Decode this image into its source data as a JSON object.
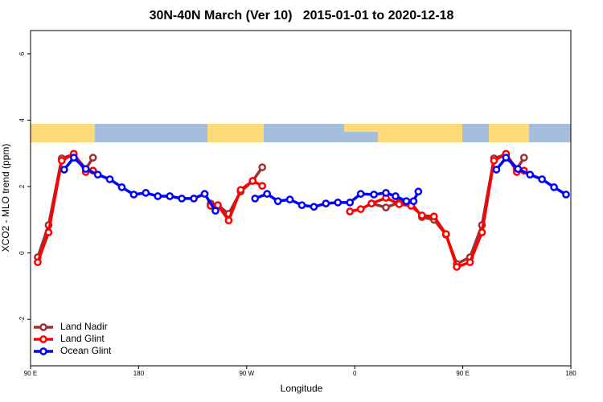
{
  "chart_data": {
    "type": "line",
    "title": "30N-40N March (Ver 10)   2015-01-01 to 2020-12-18",
    "xlabel": "Longitude",
    "ylabel": "XCO2 - MLO trend (ppm)",
    "xlim": [
      90,
      540
    ],
    "ylim": [
      -3.4,
      6.7
    ],
    "xticks": [
      {
        "value": 90,
        "label": "90 E"
      },
      180,
      {
        "value": 270,
        "label": "90 W"
      },
      {
        "value": 360,
        "label": "0"
      },
      {
        "value": 450,
        "label": "90 E"
      },
      {
        "value": 540,
        "label": "180"
      }
    ],
    "yticks": [
      -2,
      0,
      2,
      4,
      6
    ],
    "legend": "bottom-left",
    "series": [
      {
        "name": "Land Nadir",
        "color": "#a03030",
        "x": [
          96,
          105,
          116,
          126,
          136,
          142,
          null,
          240,
          246,
          255,
          265,
          275,
          283,
          null,
          374,
          386,
          397,
          407,
          416,
          426,
          436,
          445,
          456,
          466,
          476,
          486,
          495,
          501
        ],
        "values": [
          -0.13,
          0.84,
          2.85,
          2.97,
          2.53,
          2.87,
          null,
          1.49,
          1.44,
          1.18,
          1.85,
          2.17,
          2.58,
          null,
          1.49,
          1.37,
          1.52,
          1.52,
          1.08,
          1.0,
          0.55,
          -0.33,
          -0.13,
          0.84,
          2.85,
          2.97,
          2.53,
          2.87
        ]
      },
      {
        "name": "Land Glint",
        "color": "#ff0000",
        "x": [
          96,
          105,
          116,
          126,
          136,
          142,
          null,
          240,
          246,
          255,
          265,
          275,
          283,
          null,
          356,
          365,
          374,
          386,
          397,
          407,
          416,
          426,
          436,
          445,
          456,
          466,
          476,
          486,
          495,
          501
        ],
        "values": [
          -0.28,
          0.62,
          2.78,
          2.99,
          2.44,
          2.48,
          null,
          1.42,
          1.44,
          0.98,
          1.9,
          2.17,
          2.02,
          null,
          1.25,
          1.32,
          1.49,
          1.66,
          1.47,
          1.42,
          1.13,
          1.1,
          0.57,
          -0.42,
          -0.28,
          0.62,
          2.78,
          2.99,
          2.44,
          2.48
        ]
      },
      {
        "name": "Ocean Glint",
        "color": "#0000ff",
        "x": [
          118,
          126,
          136,
          146,
          156,
          166,
          176,
          186,
          196,
          206,
          216,
          226,
          235,
          244,
          null,
          277,
          287,
          296,
          306,
          316,
          326,
          336,
          346,
          356,
          365,
          376,
          386,
          394,
          403,
          409,
          413,
          null,
          478,
          486,
          496,
          506,
          516,
          526,
          536
        ],
        "values": [
          2.51,
          2.87,
          2.53,
          2.36,
          2.22,
          1.98,
          1.76,
          1.81,
          1.71,
          1.71,
          1.64,
          1.64,
          1.78,
          1.27,
          null,
          1.64,
          1.78,
          1.56,
          1.61,
          1.44,
          1.39,
          1.49,
          1.52,
          1.52,
          1.78,
          1.76,
          1.81,
          1.71,
          1.56,
          1.56,
          1.85,
          null,
          2.51,
          2.87,
          2.53,
          2.36,
          2.22,
          1.98,
          1.76
        ]
      }
    ]
  }
}
